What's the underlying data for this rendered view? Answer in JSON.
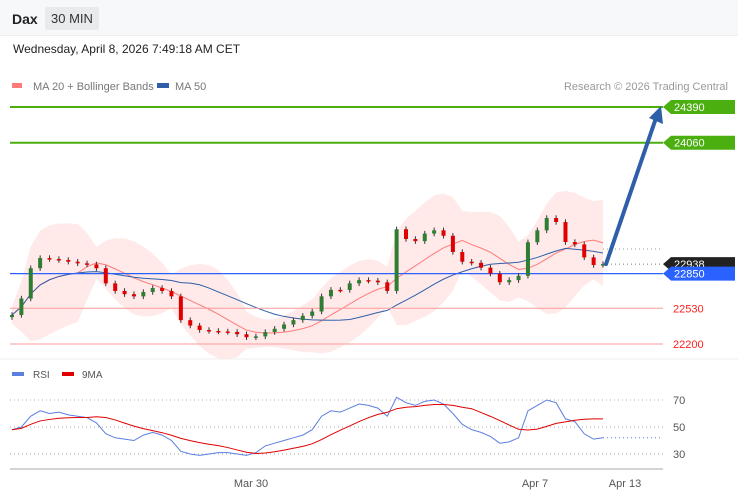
{
  "header": {
    "symbol": "Dax",
    "timeframe": "30 MIN",
    "datetime": "Wednesday, April 8, 2026 7:49:18 AM CET"
  },
  "legend": {
    "ma20": "MA 20 + Bollinger Bands",
    "ma50": "MA 50",
    "credit": "Research © 2026 Trading Central"
  },
  "rsi_legend": {
    "rsi": "RSI",
    "ma9": "9MA"
  },
  "colors": {
    "ma20": "#ff7b7b",
    "ma50": "#2e5fa8",
    "resistance": "#4caf10",
    "support": "#ff4d4d",
    "pivot": "#2962ff",
    "up": "#2e7d32",
    "down": "#e00000",
    "arrow": "#2e5fa8",
    "rsi": "#5b7fe0"
  },
  "levels": {
    "resistance": [
      "24390",
      "24060"
    ],
    "pivot": "22850",
    "support": [
      "22530",
      "22200"
    ],
    "last": "22938"
  },
  "xaxis": [
    "Mar 30",
    "Apr 7",
    "Apr 13"
  ],
  "rsi_ticks": [
    "70",
    "50",
    "30"
  ],
  "chart_data": {
    "type": "candlestick",
    "closes": [
      22468,
      22620,
      22900,
      22994,
      22985,
      22976,
      22960,
      22945,
      22935,
      22900,
      22760,
      22690,
      22660,
      22640,
      22680,
      22717,
      22690,
      22640,
      22420,
      22370,
      22329,
      22320,
      22315,
      22311,
      22290,
      22262,
      22270,
      22310,
      22340,
      22380,
      22420,
      22460,
      22500,
      22640,
      22700,
      22699,
      22760,
      22790,
      22785,
      22770,
      22690,
      23260,
      23170,
      23150,
      23220,
      23250,
      23200,
      23050,
      22960,
      22950,
      22905,
      22850,
      22770,
      22790,
      22830,
      23140,
      23250,
      23364,
      23327,
      23142,
      23120,
      23000,
      22930,
      22938
    ],
    "rsi": [
      48,
      50,
      58,
      62,
      60,
      61,
      59,
      58,
      57,
      53,
      45,
      42,
      41,
      40,
      44,
      46,
      44,
      40,
      32,
      30,
      29,
      30,
      31,
      31,
      30,
      29,
      31,
      36,
      38,
      40,
      42,
      44,
      48,
      58,
      62,
      61,
      64,
      67,
      66,
      64,
      58,
      72,
      68,
      66,
      69,
      70,
      67,
      60,
      52,
      48,
      46,
      43,
      38,
      39,
      42,
      62,
      66,
      70,
      68,
      56,
      54,
      45,
      41,
      42
    ],
    "arrow_target": 24390
  }
}
